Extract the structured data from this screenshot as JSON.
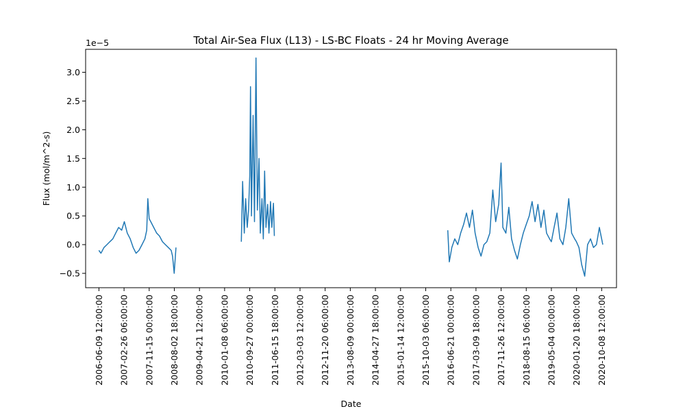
{
  "chart_data": {
    "type": "line",
    "title": "Total Air-Sea Flux (L13) - LS-BC Floats - 24 hr Moving Average",
    "xlabel": "Date",
    "ylabel": "Flux (mol/m^2-s)",
    "y_offset_label": "1e−5",
    "y_scale": 1e-05,
    "ylim": [
      -0.75,
      3.4
    ],
    "xlim": [
      "2006-01-22",
      "2021-03-12"
    ],
    "grid": false,
    "legend": "none",
    "line_color": "#1f77b4",
    "xticks": [
      "2006-06-09 12:00:00",
      "2007-02-26 06:00:00",
      "2007-11-15 00:00:00",
      "2008-08-02 18:00:00",
      "2009-04-21 12:00:00",
      "2010-01-08 06:00:00",
      "2010-09-27 00:00:00",
      "2011-06-15 18:00:00",
      "2012-03-03 12:00:00",
      "2012-11-20 06:00:00",
      "2013-08-09 00:00:00",
      "2014-04-27 18:00:00",
      "2015-01-14 12:00:00",
      "2015-10-03 06:00:00",
      "2016-06-21 00:00:00",
      "2017-03-09 18:00:00",
      "2017-11-26 12:00:00",
      "2018-08-15 06:00:00",
      "2019-05-04 00:00:00",
      "2020-01-20 18:00:00",
      "2020-10-08 12:00:00"
    ],
    "yticks": [
      -0.5,
      0.0,
      0.5,
      1.0,
      1.5,
      2.0,
      2.5,
      3.0
    ],
    "ytick_labels": [
      "−0.5",
      "0.0",
      "0.5",
      "1.0",
      "1.5",
      "2.0",
      "2.5",
      "3.0"
    ],
    "series": [
      {
        "segments": [
          {
            "x": [
              "2006-06-09",
              "2006-07-01",
              "2006-08-01",
              "2006-09-01",
              "2006-10-01",
              "2006-11-01",
              "2006-12-01",
              "2007-01-01",
              "2007-02-01",
              "2007-03-01",
              "2007-04-01",
              "2007-05-01",
              "2007-06-01",
              "2007-07-01",
              "2007-08-01",
              "2007-09-01",
              "2007-10-01",
              "2007-10-20",
              "2007-11-01",
              "2007-11-15",
              "2007-12-01",
              "2008-01-01",
              "2008-02-01",
              "2008-03-01",
              "2008-04-01",
              "2008-05-01",
              "2008-06-01",
              "2008-07-01",
              "2008-07-15",
              "2008-08-01",
              "2008-08-20"
            ],
            "y": [
              -0.1,
              -0.15,
              -0.05,
              0.0,
              0.05,
              0.1,
              0.2,
              0.3,
              0.25,
              0.4,
              0.2,
              0.1,
              -0.05,
              -0.15,
              -0.1,
              0.0,
              0.1,
              0.25,
              0.8,
              0.45,
              0.4,
              0.3,
              0.2,
              0.15,
              0.05,
              0.0,
              -0.05,
              -0.1,
              -0.2,
              -0.5,
              -0.05
            ]
          },
          {
            "x": [
              "2010-07-01",
              "2010-07-15",
              "2010-08-01",
              "2010-08-15",
              "2010-09-01",
              "2010-09-15",
              "2010-09-27",
              "2010-10-05",
              "2010-10-15",
              "2010-11-01",
              "2010-11-15",
              "2010-12-01",
              "2010-12-15",
              "2011-01-01",
              "2011-01-15",
              "2011-02-01",
              "2011-02-15",
              "2011-03-01",
              "2011-03-15",
              "2011-04-01",
              "2011-04-15",
              "2011-05-01",
              "2011-05-15",
              "2011-06-01",
              "2011-06-10"
            ],
            "y": [
              0.05,
              1.1,
              0.2,
              0.8,
              0.3,
              0.6,
              1.2,
              2.75,
              0.5,
              2.25,
              0.4,
              3.25,
              0.6,
              1.5,
              0.2,
              0.8,
              0.1,
              1.28,
              0.3,
              0.7,
              0.2,
              0.75,
              0.3,
              0.72,
              0.15
            ]
          },
          {
            "x": [
              "2016-05-20",
              "2016-06-05",
              "2016-07-01",
              "2016-08-01",
              "2016-09-01",
              "2016-10-01",
              "2016-11-01",
              "2016-12-01",
              "2017-01-01",
              "2017-02-01",
              "2017-03-01",
              "2017-04-01",
              "2017-05-01",
              "2017-06-01",
              "2017-07-01",
              "2017-08-01",
              "2017-09-01",
              "2017-10-01",
              "2017-11-01",
              "2017-11-26",
              "2017-12-15",
              "2018-01-15",
              "2018-02-15",
              "2018-03-15",
              "2018-04-15",
              "2018-05-15",
              "2018-06-15",
              "2018-07-15",
              "2018-08-15",
              "2018-09-15",
              "2018-10-15",
              "2018-11-15",
              "2018-12-15",
              "2019-01-15",
              "2019-02-15",
              "2019-03-15",
              "2019-04-15",
              "2019-05-04",
              "2019-06-01",
              "2019-07-01",
              "2019-08-01",
              "2019-09-01",
              "2019-10-01",
              "2019-11-01",
              "2019-12-01",
              "2020-01-01",
              "2020-01-20",
              "2020-02-15",
              "2020-03-15",
              "2020-04-15",
              "2020-05-15",
              "2020-06-15",
              "2020-07-15",
              "2020-08-15",
              "2020-09-15",
              "2020-10-08",
              "2020-10-20"
            ],
            "y": [
              0.25,
              -0.3,
              -0.05,
              0.1,
              0.0,
              0.2,
              0.35,
              0.55,
              0.3,
              0.6,
              0.2,
              -0.05,
              -0.2,
              0.0,
              0.05,
              0.2,
              0.95,
              0.4,
              0.7,
              1.42,
              0.3,
              0.2,
              0.65,
              0.1,
              -0.1,
              -0.25,
              0.0,
              0.2,
              0.35,
              0.5,
              0.75,
              0.4,
              0.7,
              0.3,
              0.6,
              0.2,
              0.1,
              0.05,
              0.3,
              0.55,
              0.1,
              0.0,
              0.3,
              0.8,
              0.2,
              0.1,
              0.05,
              -0.05,
              -0.35,
              -0.55,
              0.0,
              0.1,
              -0.05,
              0.0,
              0.3,
              0.1,
              0.0
            ]
          }
        ]
      }
    ]
  }
}
